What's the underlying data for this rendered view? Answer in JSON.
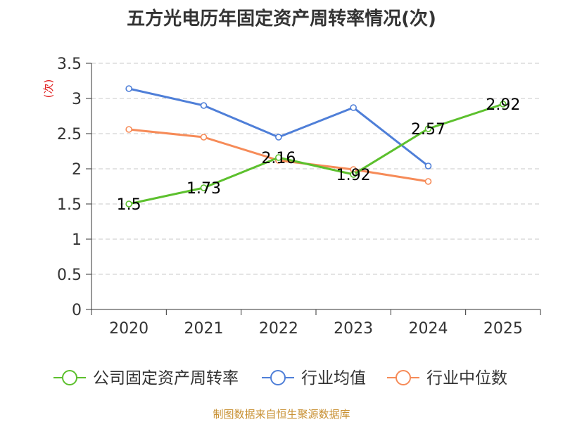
{
  "chart_data": {
    "type": "line",
    "title": "五方光电历年固定资产周转率情况(次)",
    "ylabel": "(次)",
    "xlabel": "",
    "ylim": [
      0,
      3.5
    ],
    "y_ticks": [
      "0",
      "0.5",
      "1",
      "1.5",
      "2",
      "2.5",
      "3",
      "3.5"
    ],
    "categories": [
      "2020",
      "2021",
      "2022",
      "2023",
      "2024",
      "2025"
    ],
    "grid": true,
    "legend_position": "bottom",
    "series": [
      {
        "name": "公司固定资产周转率",
        "values": [
          1.5,
          1.73,
          2.16,
          1.92,
          2.57,
          2.92
        ],
        "labels": [
          "1.5",
          "1.73",
          "2.16",
          "1.92",
          "2.57",
          "2.92"
        ],
        "color": "#5cc02d",
        "show_labels": true
      },
      {
        "name": "行业均值",
        "values": [
          3.14,
          2.9,
          2.45,
          2.87,
          2.04,
          null
        ],
        "color": "#4f7fd8",
        "show_labels": false
      },
      {
        "name": "行业中位数",
        "values": [
          2.56,
          2.45,
          2.12,
          1.99,
          1.82,
          null
        ],
        "color": "#f68b58",
        "show_labels": false
      }
    ]
  },
  "unit_color": "#e02020",
  "source_note": "制图数据来自恒生聚源数据库",
  "source_color": "#c89032"
}
